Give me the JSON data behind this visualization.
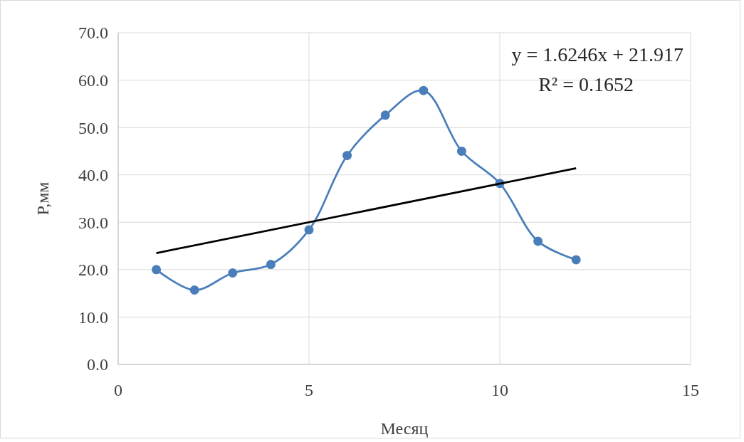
{
  "chart_data": {
    "type": "line",
    "xlabel": "Месяц",
    "ylabel": "P,мм",
    "xlim": [
      0,
      15
    ],
    "xticks": [
      0,
      5,
      10,
      15
    ],
    "ylim": [
      0,
      70
    ],
    "yticks": [
      {
        "value": 0,
        "label": "0.0"
      },
      {
        "value": 10,
        "label": "10.0"
      },
      {
        "value": 20,
        "label": "20.0"
      },
      {
        "value": 30,
        "label": "30.0"
      },
      {
        "value": 40,
        "label": "40.0"
      },
      {
        "value": 50,
        "label": "50.0"
      },
      {
        "value": 60,
        "label": "60.0"
      },
      {
        "value": 70,
        "label": "70.0"
      }
    ],
    "grid": true,
    "annotations": [
      "y = 1.6246x + 21.917",
      "R² = 0.1652"
    ],
    "series": [
      {
        "color": "#4a7ebb",
        "marker": "circle",
        "x": [
          1,
          2,
          3,
          4,
          5,
          6,
          7,
          8,
          9,
          10,
          11,
          12
        ],
        "values": [
          20.0,
          15.7,
          19.3,
          21.1,
          28.4,
          44.1,
          52.6,
          57.8,
          45.0,
          38.2,
          26.0,
          22.1
        ]
      },
      {
        "color": "#000000",
        "marker": "none",
        "x": [
          1,
          12
        ],
        "values": [
          23.5,
          41.4
        ]
      }
    ]
  }
}
